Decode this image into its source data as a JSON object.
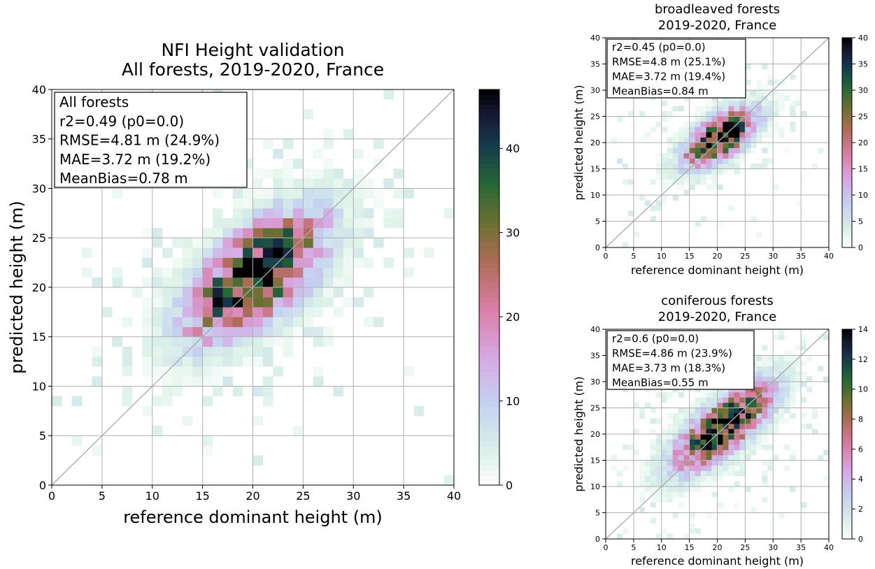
{
  "figure": {
    "colormap": "cubehelix_r",
    "grid": true,
    "identity_line_color": "#aaaaaa",
    "axis_color": "#000000"
  },
  "chart_data": [
    {
      "type": "heatmap",
      "title": [
        "NFI Height validation",
        "All forests, 2019-2020, France"
      ],
      "xlabel": "reference dominant height (m)",
      "ylabel": "predicted height (m)",
      "xlim": [
        0,
        40
      ],
      "ylim": [
        0,
        40
      ],
      "xticks": [
        0,
        5,
        10,
        15,
        20,
        25,
        30,
        35,
        40
      ],
      "yticks": [
        0,
        5,
        10,
        15,
        20,
        25,
        30,
        35,
        40
      ],
      "bin_width": 1,
      "colorbar": {
        "min": 0,
        "max": 47,
        "ticks": [
          0,
          10,
          20,
          30,
          40
        ]
      },
      "stats_box": [
        "All forests",
        "r2=0.49 (p0=0.0)",
        "RMSE=4.81 m (24.9%)",
        "MAE=3.72 m (19.2%)",
        "MeanBias=0.78 m"
      ],
      "density": {
        "cx": 20.3,
        "cy": 21.1,
        "spread_major": 5.4,
        "spread_minor": 2.6,
        "peak": 47,
        "angle_deg": 42,
        "noise_floor": 0.6
      }
    },
    {
      "type": "heatmap",
      "title": [
        "broadleaved forests",
        "2019-2020, France"
      ],
      "xlabel": "reference dominant height (m)",
      "ylabel": "predicted height (m)",
      "xlim": [
        0,
        40
      ],
      "ylim": [
        0,
        40
      ],
      "xticks": [
        0,
        5,
        10,
        15,
        20,
        25,
        30,
        35,
        40
      ],
      "yticks": [
        0,
        5,
        10,
        15,
        20,
        25,
        30,
        35,
        40
      ],
      "bin_width": 1,
      "colorbar": {
        "min": 0,
        "max": 40,
        "ticks": [
          0,
          5,
          10,
          15,
          20,
          25,
          30,
          35,
          40
        ]
      },
      "stats_box": [
        "r2=0.45 (p0=0.0)",
        "RMSE=4.8 m (25.1%)",
        "MAE=3.72 m (19.4%)",
        "MeanBias=0.84 m"
      ],
      "density": {
        "cx": 20.5,
        "cy": 21.0,
        "spread_major": 5.0,
        "spread_minor": 2.3,
        "peak": 40,
        "angle_deg": 38,
        "noise_floor": 0.5
      }
    },
    {
      "type": "heatmap",
      "title": [
        "coniferous forests",
        "2019-2020, France"
      ],
      "xlabel": "reference dominant height (m)",
      "ylabel": "predicted height (m)",
      "xlim": [
        0,
        40
      ],
      "ylim": [
        0,
        40
      ],
      "xticks": [
        0,
        5,
        10,
        15,
        20,
        25,
        30,
        35,
        40
      ],
      "yticks": [
        0,
        5,
        10,
        15,
        20,
        25,
        30,
        35,
        40
      ],
      "bin_width": 1,
      "colorbar": {
        "min": 0,
        "max": 14,
        "ticks": [
          0,
          2,
          4,
          6,
          8,
          10,
          12,
          14
        ]
      },
      "stats_box": [
        "r2=0.6 (p0=0.0)",
        "RMSE=4.86 m (23.9%)",
        "MAE=3.73 m (18.3%)",
        "MeanBias=0.55 m"
      ],
      "density": {
        "cx": 21.0,
        "cy": 21.3,
        "spread_major": 7.2,
        "spread_minor": 2.7,
        "peak": 14,
        "angle_deg": 43,
        "noise_floor": 0.5
      }
    }
  ]
}
